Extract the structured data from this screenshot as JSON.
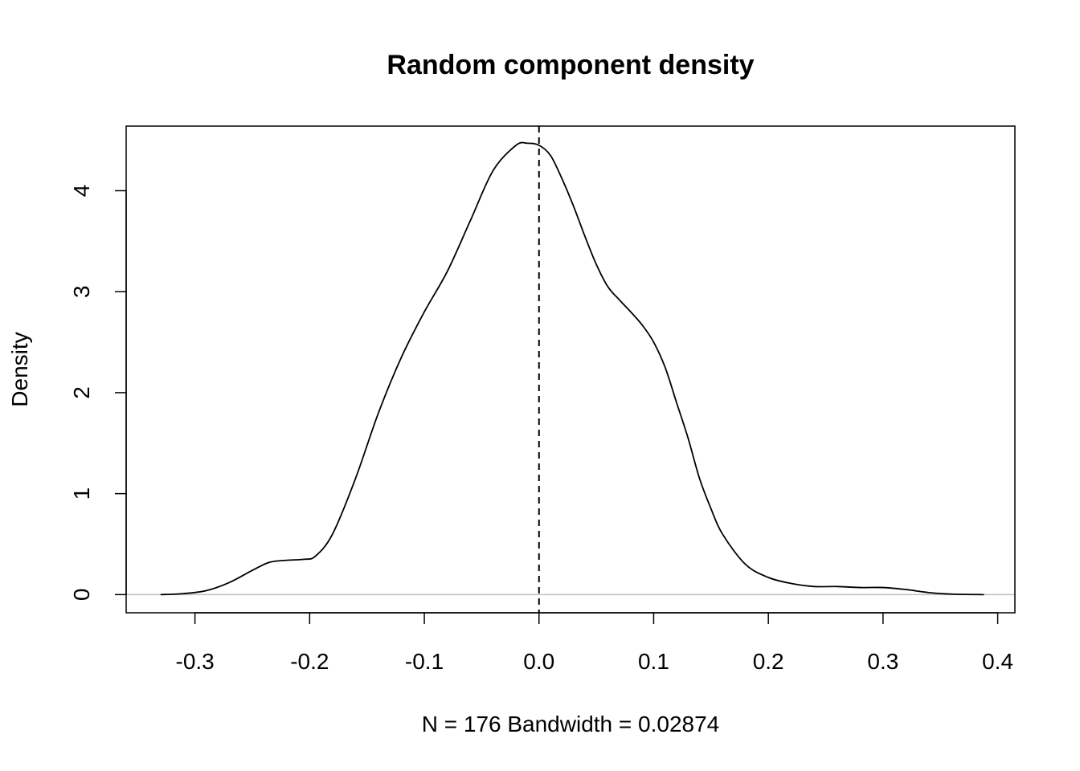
{
  "chart_data": {
    "type": "line",
    "title": "Random component density",
    "xlabel": "N = 176   Bandwidth = 0.02874",
    "ylabel": "Density",
    "xlim": [
      -0.36,
      0.415
    ],
    "ylim": [
      -0.18,
      4.64
    ],
    "x_ticks": [
      -0.3,
      -0.2,
      -0.1,
      0.0,
      0.1,
      0.2,
      0.3,
      0.4
    ],
    "x_tick_labels": [
      "-0.3",
      "-0.2",
      "-0.1",
      "0.0",
      "0.1",
      "0.2",
      "0.3",
      "0.4"
    ],
    "y_ticks": [
      0,
      1,
      2,
      3,
      4
    ],
    "y_tick_labels": [
      "0",
      "1",
      "2",
      "3",
      "4"
    ],
    "grid": false,
    "legend": "none",
    "baseline": {
      "y": 0,
      "color": "#bebebe"
    },
    "reference_line": {
      "x": 0.0,
      "style": "dashed",
      "color": "#000000"
    },
    "line_color": "#000000",
    "series": [
      {
        "x": [
          -0.33,
          -0.31,
          -0.29,
          -0.27,
          -0.25,
          -0.235,
          -0.22,
          -0.205,
          -0.195,
          -0.18,
          -0.16,
          -0.14,
          -0.12,
          -0.1,
          -0.08,
          -0.06,
          -0.04,
          -0.02,
          -0.01,
          0.0,
          0.01,
          0.02,
          0.03,
          0.04,
          0.05,
          0.06,
          0.07,
          0.08,
          0.09,
          0.1,
          0.11,
          0.12,
          0.13,
          0.14,
          0.15,
          0.16,
          0.18,
          0.2,
          0.22,
          0.24,
          0.26,
          0.28,
          0.3,
          0.32,
          0.34,
          0.36,
          0.388
        ],
        "y": [
          0.0,
          0.01,
          0.04,
          0.12,
          0.24,
          0.32,
          0.34,
          0.35,
          0.38,
          0.6,
          1.15,
          1.8,
          2.35,
          2.8,
          3.2,
          3.7,
          4.2,
          4.45,
          4.47,
          4.45,
          4.35,
          4.12,
          3.85,
          3.55,
          3.27,
          3.05,
          2.92,
          2.8,
          2.67,
          2.5,
          2.25,
          1.9,
          1.55,
          1.15,
          0.85,
          0.6,
          0.3,
          0.17,
          0.11,
          0.08,
          0.08,
          0.07,
          0.07,
          0.05,
          0.02,
          0.005,
          0.0
        ]
      }
    ]
  }
}
